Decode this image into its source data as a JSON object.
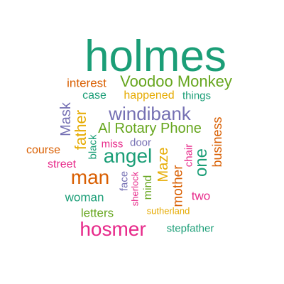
{
  "wordcloud": {
    "words": [
      {
        "id": "holmes",
        "text": "holmes",
        "color": "#1b9e77"
      },
      {
        "id": "voodoo-monkey",
        "text": "Voodoo Monkey",
        "color": "#66a61e"
      },
      {
        "id": "interest",
        "text": "interest",
        "color": "#d95f02"
      },
      {
        "id": "case",
        "text": "case",
        "color": "#1b9e77"
      },
      {
        "id": "happened",
        "text": "happened",
        "color": "#e6ab02"
      },
      {
        "id": "things",
        "text": "things",
        "color": "#1b9e77"
      },
      {
        "id": "windibank",
        "text": "windibank",
        "color": "#7570b3"
      },
      {
        "id": "mask",
        "text": "Mask",
        "color": "#7570b3"
      },
      {
        "id": "father",
        "text": "father",
        "color": "#e6ab02"
      },
      {
        "id": "al-rotary",
        "text": "Al Rotary Phone",
        "color": "#66a61e"
      },
      {
        "id": "business",
        "text": "business",
        "color": "#d95f02"
      },
      {
        "id": "black",
        "text": "black",
        "color": "#1b9e77"
      },
      {
        "id": "miss",
        "text": "miss",
        "color": "#e7298a"
      },
      {
        "id": "door",
        "text": "door",
        "color": "#7570b3"
      },
      {
        "id": "course",
        "text": "course",
        "color": "#d95f02"
      },
      {
        "id": "angel",
        "text": "angel",
        "color": "#1b9e77"
      },
      {
        "id": "maze",
        "text": "Maze",
        "color": "#e6ab02"
      },
      {
        "id": "chair",
        "text": "chair",
        "color": "#e7298a"
      },
      {
        "id": "one",
        "text": "one",
        "color": "#1b9e77"
      },
      {
        "id": "street",
        "text": "street",
        "color": "#e7298a"
      },
      {
        "id": "man",
        "text": "man",
        "color": "#d95f02"
      },
      {
        "id": "face",
        "text": "face",
        "color": "#7570b3"
      },
      {
        "id": "sherlock",
        "text": "sherlock",
        "color": "#e7298a"
      },
      {
        "id": "mind",
        "text": "mind",
        "color": "#66a61e"
      },
      {
        "id": "mother",
        "text": "mother",
        "color": "#d95f02"
      },
      {
        "id": "two",
        "text": "two",
        "color": "#e7298a"
      },
      {
        "id": "woman",
        "text": "woman",
        "color": "#1b9e77"
      },
      {
        "id": "letters",
        "text": "letters",
        "color": "#66a61e"
      },
      {
        "id": "sutherland",
        "text": "sutherland",
        "color": "#e6ab02"
      },
      {
        "id": "hosmer",
        "text": "hosmer",
        "color": "#e7298a"
      },
      {
        "id": "stepfather",
        "text": "stepfather",
        "color": "#1b9e77"
      }
    ]
  }
}
